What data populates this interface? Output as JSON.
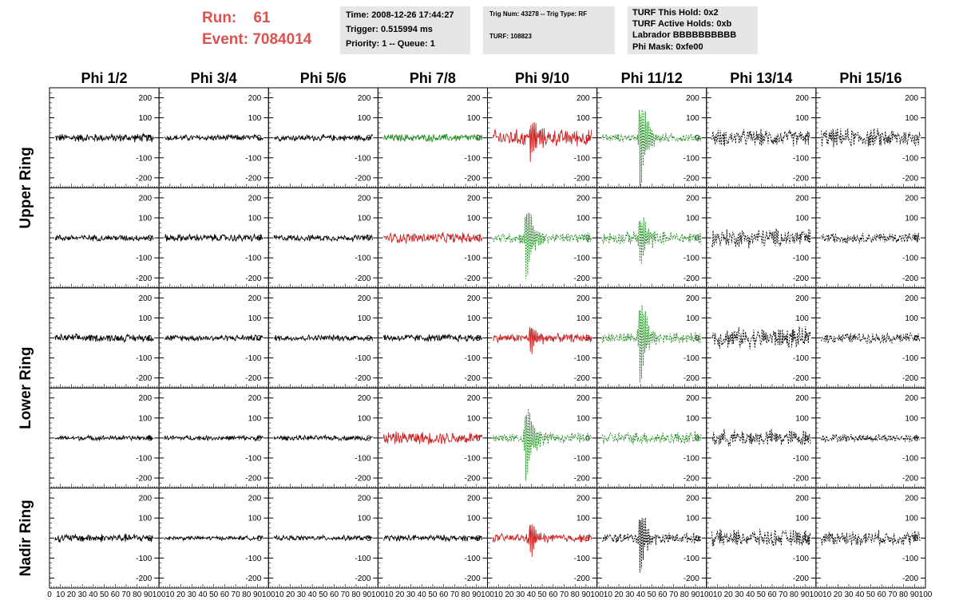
{
  "header": {
    "run_label": "Run:",
    "run_value": "61",
    "event_label": "Event:",
    "event_value": "7084014",
    "accent_color": "#d9534f"
  },
  "info_boxes": {
    "time_box": {
      "time": "Time: 2008-12-26 17:44:27",
      "trigger": "Trigger: 0.515994 ms",
      "priority": "Priority: 1 -- Queue: 1"
    },
    "trig_box": {
      "trig_num": "Trig Num: 43278 -- Trig Type: RF",
      "turf": "TURF: 108823"
    },
    "turf_box": {
      "this_hold": "TURF This Hold: 0x2",
      "active_holds": "TURF Active Holds: 0xb",
      "labrador": "Labrador BBBBBBBBBB",
      "phi_mask": "Phi Mask: 0xfe00"
    }
  },
  "chart_data": {
    "type": "line",
    "columns": [
      "Phi 1/2",
      "Phi 3/4",
      "Phi 5/6",
      "Phi 7/8",
      "Phi 9/10",
      "Phi 11/12",
      "Phi 13/14",
      "Phi 15/16"
    ],
    "rows": [
      "Upper Ring",
      "Upper Ring",
      "Lower Ring",
      "Lower Ring",
      "Nadir Ring"
    ],
    "row_labels": [
      {
        "text": "Upper Ring",
        "rows": [
          0,
          1
        ]
      },
      {
        "text": "Lower Ring",
        "rows": [
          2,
          3
        ]
      },
      {
        "text": "Nadir Ring",
        "rows": [
          4
        ]
      }
    ],
    "xlim": [
      0,
      100
    ],
    "ylim": [
      -250,
      250
    ],
    "x_ticks": [
      0,
      10,
      20,
      30,
      40,
      50,
      60,
      70,
      80,
      90,
      100
    ],
    "x_tick_labels": [
      "0",
      "10",
      "20",
      "30",
      "40",
      "50",
      "60",
      "70",
      "80",
      "90",
      "100"
    ],
    "y_ticks": [
      -200,
      -100,
      0,
      100,
      200
    ],
    "y_tick_labels": [
      "-200",
      "-100",
      "0",
      "100",
      "200"
    ],
    "colors": {
      "normal": "#000000",
      "masked": "#cc2222",
      "triggered": "#1f8a1f"
    },
    "cells": [
      [
        {
          "c": "k",
          "a": 20,
          "p": null
        },
        {
          "c": "k",
          "a": 15,
          "p": null
        },
        {
          "c": "k",
          "a": 15,
          "p": null
        },
        {
          "c": "g",
          "a": 18,
          "p": null
        },
        {
          "c": "r",
          "a": 40,
          "p": 40,
          "pa": 100
        },
        {
          "c": "g",
          "a": 20,
          "p": 40,
          "pa": 240,
          "d": 1
        },
        {
          "c": "k",
          "a": 40,
          "p": null,
          "d": 1
        },
        {
          "c": "k",
          "a": 45,
          "p": null,
          "d": 1
        }
      ],
      [
        {
          "c": "k",
          "a": 15,
          "p": null
        },
        {
          "c": "k",
          "a": 18,
          "p": null
        },
        {
          "c": "k",
          "a": 15,
          "p": null
        },
        {
          "c": "r",
          "a": 25,
          "p": null
        },
        {
          "c": "g",
          "a": 25,
          "p": 36,
          "pa": 200,
          "d": 1
        },
        {
          "c": "g",
          "a": 30,
          "p": 40,
          "pa": 140,
          "d": 1
        },
        {
          "c": "k",
          "a": 45,
          "p": null,
          "d": 1
        },
        {
          "c": "k",
          "a": 25,
          "p": null,
          "d": 1
        }
      ],
      [
        {
          "c": "k",
          "a": 18,
          "p": null
        },
        {
          "c": "k",
          "a": 15,
          "p": null
        },
        {
          "c": "k",
          "a": 15,
          "p": null
        },
        {
          "c": "k",
          "a": 18,
          "p": null
        },
        {
          "c": "r",
          "a": 20,
          "p": 40,
          "pa": 80
        },
        {
          "c": "g",
          "a": 25,
          "p": 40,
          "pa": 230,
          "d": 1
        },
        {
          "c": "k",
          "a": 50,
          "p": null,
          "d": 1
        },
        {
          "c": "k",
          "a": 25,
          "p": null,
          "d": 1
        }
      ],
      [
        {
          "c": "k",
          "a": 12,
          "p": null
        },
        {
          "c": "k",
          "a": 12,
          "p": null
        },
        {
          "c": "k",
          "a": 12,
          "p": null
        },
        {
          "c": "r",
          "a": 30,
          "p": null
        },
        {
          "c": "g",
          "a": 25,
          "p": 36,
          "pa": 200,
          "d": 1
        },
        {
          "c": "g",
          "a": 30,
          "p": null,
          "d": 1
        },
        {
          "c": "k",
          "a": 40,
          "p": null,
          "d": 1
        },
        {
          "c": "k",
          "a": 20,
          "p": null,
          "d": 1
        }
      ],
      [
        {
          "c": "k",
          "a": 20,
          "p": null
        },
        {
          "c": "k",
          "a": 10,
          "p": null
        },
        {
          "c": "k",
          "a": 12,
          "p": null
        },
        {
          "c": "k",
          "a": 15,
          "p": null
        },
        {
          "c": "r",
          "a": 20,
          "p": 40,
          "pa": 90
        },
        {
          "c": "k",
          "a": 25,
          "p": 40,
          "pa": 170,
          "d": 1
        },
        {
          "c": "k",
          "a": 40,
          "p": null,
          "d": 1
        },
        {
          "c": "k",
          "a": 35,
          "p": null,
          "d": 1
        }
      ]
    ]
  }
}
